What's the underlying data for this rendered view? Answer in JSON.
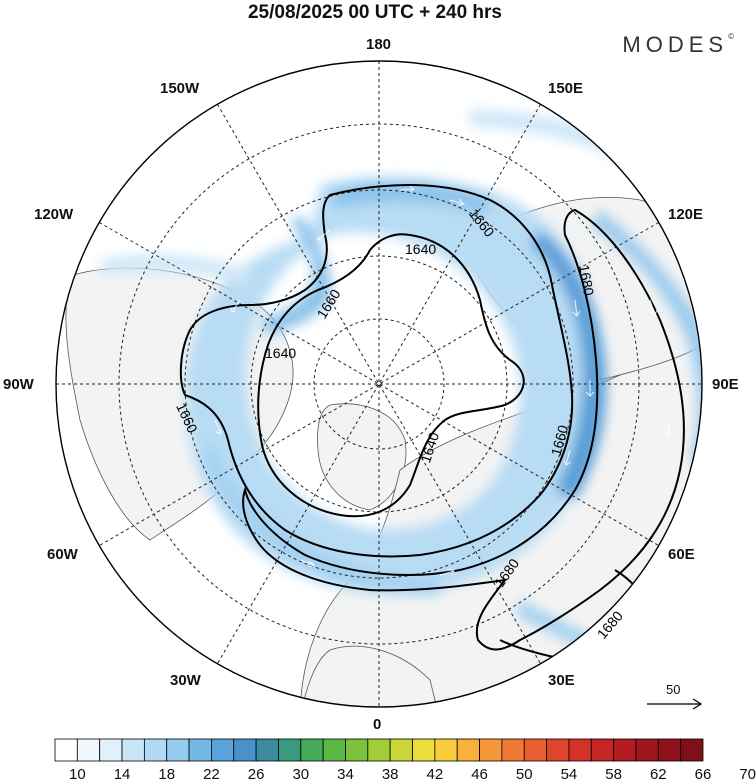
{
  "title": "25/08/2025  00 UTC  + 240 hrs",
  "brand": {
    "name": "MODES",
    "mark": "©"
  },
  "map": {
    "projection": "north-polar-stereographic",
    "longitude_labels": [
      "180",
      "150E",
      "120E",
      "90E",
      "60E",
      "30E",
      "0",
      "30W",
      "60W",
      "90W",
      "120W",
      "150W"
    ],
    "contour_labels": [
      "1640",
      "1640",
      "1640",
      "1660",
      "1660",
      "1660",
      "1660",
      "1680",
      "1680",
      "1680"
    ],
    "contour_levels": [
      1640,
      1660,
      1680
    ],
    "reference_vector": {
      "label": "50"
    }
  },
  "colorbar": {
    "tick_labels": [
      "10",
      "14",
      "18",
      "22",
      "26",
      "30",
      "34",
      "38",
      "42",
      "46",
      "50",
      "54",
      "58",
      "62",
      "66",
      "70"
    ],
    "colors": [
      "#ffffff",
      "#f0f8fd",
      "#e0f1fb",
      "#c9e6f7",
      "#b0daf3",
      "#94cbee",
      "#74b8e6",
      "#5aa3da",
      "#4a90cb",
      "#3c8ca0",
      "#3a9a7d",
      "#45aa5a",
      "#5cb845",
      "#7cc23c",
      "#a3cc39",
      "#cbd63a",
      "#ecde3a",
      "#f8cc3c",
      "#f8b13a",
      "#f5963a",
      "#f07a35",
      "#ea5e31",
      "#e0452c",
      "#d33227",
      "#c52623",
      "#b31c20",
      "#a0161d",
      "#8f121b",
      "#7f0f19"
    ]
  }
}
